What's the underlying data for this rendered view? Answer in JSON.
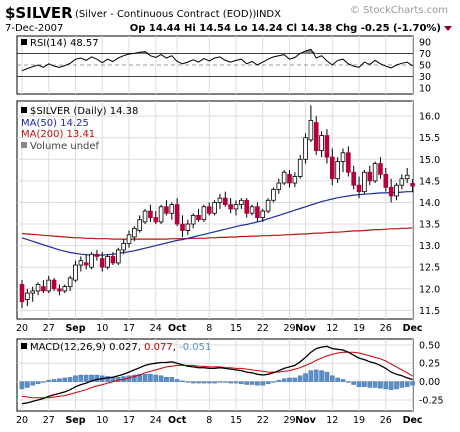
{
  "header": {
    "symbol": "$SILVER",
    "description": "(Silver - Continuous Contract (EOD))",
    "exchange": "INDX",
    "watermark": "© StockCharts.com",
    "date": "7-Dec-2007",
    "quote": "Op 14.44 Hi 14.54 Lo 14.24 Cl 14.38 Chg -0.25 (-1.70%)",
    "chg_arrow": "down-triangle-icon"
  },
  "rsi": {
    "label": "RSI(14) 48.57",
    "ticks": [
      "90",
      "70",
      "50",
      "30",
      "10"
    ],
    "levels": [
      90,
      70,
      50,
      30,
      10
    ],
    "overbought": 70,
    "oversold": 30,
    "range": [
      0,
      100
    ]
  },
  "price": {
    "legend": {
      "title": "$SILVER (Daily) 14.38",
      "ma50": "MA(50) 14.25",
      "ma200": "MA(200) 13.41",
      "volume": "Volume undef"
    },
    "ticks": [
      "16.0",
      "15.5",
      "15.0",
      "14.5",
      "14.0",
      "13.5",
      "13.0",
      "12.5",
      "12.0",
      "11.5"
    ],
    "tick_values": [
      16.0,
      15.5,
      15.0,
      14.5,
      14.0,
      13.5,
      13.0,
      12.5,
      12.0,
      11.5
    ],
    "range": [
      11.3,
      16.35
    ]
  },
  "macd": {
    "label": "MACD(12,26,9) 0.027, ",
    "signal_val": "0.077",
    "sep": ", ",
    "hist_val": "-0.051",
    "ticks": [
      "0.50",
      "0.25",
      "0.00",
      "-0.25"
    ],
    "tick_values": [
      0.5,
      0.25,
      0.0,
      -0.25
    ],
    "range": [
      -0.4,
      0.58
    ]
  },
  "x_axis": {
    "labels": [
      "20",
      "27",
      "Sep",
      "10",
      "17",
      "24",
      "Oct",
      "8",
      "15",
      "22",
      "29",
      "Nov",
      "12",
      "19",
      "26",
      "Dec"
    ],
    "label_bars": [
      0,
      5,
      10,
      15,
      20,
      25,
      29,
      35,
      40,
      45,
      50,
      53,
      58,
      63,
      68,
      73
    ],
    "bold": [
      "Sep",
      "Oct",
      "Nov",
      "Dec"
    ]
  },
  "colors": {
    "up": "#ffffff",
    "down": "#b3003a",
    "ma50": "#1f2d9e",
    "ma200": "#c01010",
    "macd_line": "#000000",
    "signal_line": "#cc0000",
    "histogram": "#5b8ec9",
    "rsi_line": "#000000",
    "grid": "#dcdcdc"
  },
  "chart_data": {
    "type": "candlestick",
    "ohlc": [
      {
        "o": 12.1,
        "h": 12.2,
        "l": 11.55,
        "c": 11.7
      },
      {
        "o": 11.75,
        "h": 12.0,
        "l": 11.6,
        "c": 11.9
      },
      {
        "o": 11.9,
        "h": 12.05,
        "l": 11.7,
        "c": 11.95
      },
      {
        "o": 11.95,
        "h": 12.15,
        "l": 11.85,
        "c": 12.1
      },
      {
        "o": 12.05,
        "h": 12.2,
        "l": 11.9,
        "c": 11.95
      },
      {
        "o": 11.95,
        "h": 12.3,
        "l": 11.9,
        "c": 12.2
      },
      {
        "o": 12.2,
        "h": 12.25,
        "l": 11.95,
        "c": 12.0
      },
      {
        "o": 12.0,
        "h": 12.1,
        "l": 11.85,
        "c": 11.95
      },
      {
        "o": 11.95,
        "h": 12.1,
        "l": 11.9,
        "c": 12.05
      },
      {
        "o": 12.05,
        "h": 12.3,
        "l": 11.95,
        "c": 12.25
      },
      {
        "o": 12.2,
        "h": 12.65,
        "l": 12.15,
        "c": 12.55
      },
      {
        "o": 12.55,
        "h": 12.75,
        "l": 12.4,
        "c": 12.65
      },
      {
        "o": 12.6,
        "h": 12.8,
        "l": 12.45,
        "c": 12.55
      },
      {
        "o": 12.5,
        "h": 12.85,
        "l": 12.45,
        "c": 12.8
      },
      {
        "o": 12.8,
        "h": 12.9,
        "l": 12.65,
        "c": 12.75
      },
      {
        "o": 12.7,
        "h": 12.85,
        "l": 12.4,
        "c": 12.5
      },
      {
        "o": 12.5,
        "h": 12.8,
        "l": 12.45,
        "c": 12.75
      },
      {
        "o": 12.75,
        "h": 12.85,
        "l": 12.55,
        "c": 12.6
      },
      {
        "o": 12.6,
        "h": 12.95,
        "l": 12.55,
        "c": 12.9
      },
      {
        "o": 12.9,
        "h": 13.15,
        "l": 12.8,
        "c": 13.05
      },
      {
        "o": 13.05,
        "h": 13.35,
        "l": 12.95,
        "c": 13.25
      },
      {
        "o": 13.2,
        "h": 13.45,
        "l": 13.1,
        "c": 13.4
      },
      {
        "o": 13.35,
        "h": 13.7,
        "l": 13.3,
        "c": 13.6
      },
      {
        "o": 13.55,
        "h": 13.85,
        "l": 13.5,
        "c": 13.8
      },
      {
        "o": 13.8,
        "h": 13.95,
        "l": 13.55,
        "c": 13.65
      },
      {
        "o": 13.65,
        "h": 13.8,
        "l": 13.5,
        "c": 13.55
      },
      {
        "o": 13.55,
        "h": 13.95,
        "l": 13.5,
        "c": 13.9
      },
      {
        "o": 13.9,
        "h": 14.05,
        "l": 13.7,
        "c": 13.75
      },
      {
        "o": 13.75,
        "h": 14.0,
        "l": 13.6,
        "c": 13.95
      },
      {
        "o": 13.95,
        "h": 14.1,
        "l": 13.45,
        "c": 13.5
      },
      {
        "o": 13.5,
        "h": 13.7,
        "l": 13.2,
        "c": 13.35
      },
      {
        "o": 13.35,
        "h": 13.6,
        "l": 13.25,
        "c": 13.5
      },
      {
        "o": 13.5,
        "h": 13.75,
        "l": 13.4,
        "c": 13.7
      },
      {
        "o": 13.7,
        "h": 13.85,
        "l": 13.55,
        "c": 13.6
      },
      {
        "o": 13.6,
        "h": 13.95,
        "l": 13.55,
        "c": 13.9
      },
      {
        "o": 13.9,
        "h": 14.0,
        "l": 13.7,
        "c": 13.75
      },
      {
        "o": 13.75,
        "h": 14.05,
        "l": 13.7,
        "c": 14.0
      },
      {
        "o": 14.0,
        "h": 14.2,
        "l": 13.85,
        "c": 14.1
      },
      {
        "o": 14.1,
        "h": 14.25,
        "l": 13.9,
        "c": 13.95
      },
      {
        "o": 13.95,
        "h": 14.1,
        "l": 13.75,
        "c": 13.85
      },
      {
        "o": 13.85,
        "h": 14.05,
        "l": 13.7,
        "c": 13.95
      },
      {
        "o": 13.95,
        "h": 14.1,
        "l": 13.85,
        "c": 14.05
      },
      {
        "o": 14.05,
        "h": 14.1,
        "l": 13.65,
        "c": 13.75
      },
      {
        "o": 13.75,
        "h": 13.95,
        "l": 13.7,
        "c": 13.9
      },
      {
        "o": 13.9,
        "h": 14.0,
        "l": 13.55,
        "c": 13.65
      },
      {
        "o": 13.65,
        "h": 13.85,
        "l": 13.55,
        "c": 13.8
      },
      {
        "o": 13.8,
        "h": 14.1,
        "l": 13.75,
        "c": 14.05
      },
      {
        "o": 14.05,
        "h": 14.35,
        "l": 14.0,
        "c": 14.3
      },
      {
        "o": 14.3,
        "h": 14.55,
        "l": 14.2,
        "c": 14.45
      },
      {
        "o": 14.45,
        "h": 14.75,
        "l": 14.4,
        "c": 14.7
      },
      {
        "o": 14.65,
        "h": 14.75,
        "l": 14.35,
        "c": 14.45
      },
      {
        "o": 14.45,
        "h": 14.7,
        "l": 14.35,
        "c": 14.6
      },
      {
        "o": 14.6,
        "h": 15.1,
        "l": 14.55,
        "c": 15.0
      },
      {
        "o": 15.0,
        "h": 15.6,
        "l": 14.9,
        "c": 15.5
      },
      {
        "o": 15.45,
        "h": 16.25,
        "l": 15.4,
        "c": 15.9
      },
      {
        "o": 15.85,
        "h": 16.0,
        "l": 15.1,
        "c": 15.2
      },
      {
        "o": 15.2,
        "h": 15.65,
        "l": 15.05,
        "c": 15.55
      },
      {
        "o": 15.55,
        "h": 15.7,
        "l": 14.9,
        "c": 15.05
      },
      {
        "o": 15.05,
        "h": 15.25,
        "l": 14.4,
        "c": 14.55
      },
      {
        "o": 14.55,
        "h": 15.05,
        "l": 14.45,
        "c": 14.95
      },
      {
        "o": 14.95,
        "h": 15.25,
        "l": 14.7,
        "c": 15.15
      },
      {
        "o": 15.15,
        "h": 15.3,
        "l": 14.6,
        "c": 14.7
      },
      {
        "o": 14.7,
        "h": 14.85,
        "l": 14.3,
        "c": 14.4
      },
      {
        "o": 14.4,
        "h": 14.6,
        "l": 14.1,
        "c": 14.25
      },
      {
        "o": 14.25,
        "h": 14.75,
        "l": 14.2,
        "c": 14.7
      },
      {
        "o": 14.7,
        "h": 14.85,
        "l": 14.4,
        "c": 14.5
      },
      {
        "o": 14.5,
        "h": 14.95,
        "l": 14.45,
        "c": 14.9
      },
      {
        "o": 14.9,
        "h": 15.05,
        "l": 14.55,
        "c": 14.65
      },
      {
        "o": 14.65,
        "h": 14.8,
        "l": 14.25,
        "c": 14.35
      },
      {
        "o": 14.35,
        "h": 14.55,
        "l": 14.0,
        "c": 14.15
      },
      {
        "o": 14.15,
        "h": 14.45,
        "l": 14.05,
        "c": 14.4
      },
      {
        "o": 14.4,
        "h": 14.65,
        "l": 14.3,
        "c": 14.55
      },
      {
        "o": 14.55,
        "h": 14.8,
        "l": 14.45,
        "c": 14.63
      },
      {
        "o": 14.44,
        "h": 14.54,
        "l": 14.24,
        "c": 14.38
      }
    ],
    "ma50": [
      13.18,
      13.14,
      13.1,
      13.06,
      13.02,
      12.98,
      12.94,
      12.9,
      12.87,
      12.84,
      12.82,
      12.8,
      12.79,
      12.78,
      12.78,
      12.78,
      12.79,
      12.8,
      12.82,
      12.84,
      12.86,
      12.88,
      12.91,
      12.94,
      12.97,
      13.0,
      13.03,
      13.06,
      13.09,
      13.12,
      13.14,
      13.17,
      13.2,
      13.23,
      13.26,
      13.29,
      13.32,
      13.35,
      13.38,
      13.41,
      13.44,
      13.47,
      13.49,
      13.52,
      13.55,
      13.58,
      13.62,
      13.66,
      13.7,
      13.74,
      13.78,
      13.82,
      13.86,
      13.9,
      13.94,
      13.98,
      14.02,
      14.05,
      14.08,
      14.11,
      14.13,
      14.15,
      14.17,
      14.18,
      14.19,
      14.2,
      14.21,
      14.22,
      14.22,
      14.23,
      14.23,
      14.24,
      14.25,
      14.25
    ],
    "ma200": [
      13.28,
      13.27,
      13.26,
      13.25,
      13.24,
      13.23,
      13.22,
      13.21,
      13.2,
      13.19,
      13.18,
      13.18,
      13.17,
      13.17,
      13.16,
      13.16,
      13.16,
      13.15,
      13.15,
      13.15,
      13.15,
      13.15,
      13.15,
      13.15,
      13.15,
      13.15,
      13.15,
      13.15,
      13.16,
      13.16,
      13.16,
      13.16,
      13.17,
      13.17,
      13.17,
      13.18,
      13.18,
      13.19,
      13.19,
      13.2,
      13.2,
      13.21,
      13.21,
      13.22,
      13.22,
      13.23,
      13.23,
      13.24,
      13.24,
      13.25,
      13.25,
      13.26,
      13.27,
      13.27,
      13.28,
      13.29,
      13.29,
      13.3,
      13.31,
      13.31,
      13.32,
      13.33,
      13.34,
      13.34,
      13.35,
      13.36,
      13.37,
      13.37,
      13.38,
      13.39,
      13.39,
      13.4,
      13.4,
      13.41
    ],
    "rsi": [
      40,
      44,
      47,
      50,
      46,
      52,
      48,
      46,
      49,
      53,
      60,
      62,
      58,
      64,
      60,
      54,
      60,
      56,
      62,
      66,
      69,
      70,
      72,
      73,
      66,
      63,
      68,
      62,
      66,
      56,
      52,
      55,
      59,
      55,
      61,
      57,
      62,
      64,
      58,
      55,
      58,
      60,
      52,
      56,
      50,
      55,
      60,
      64,
      66,
      68,
      60,
      63,
      70,
      74,
      77,
      62,
      66,
      57,
      50,
      58,
      60,
      52,
      48,
      46,
      55,
      51,
      58,
      52,
      48,
      45,
      50,
      53,
      55,
      48.57
    ],
    "macd": [
      -0.3,
      -0.29,
      -0.27,
      -0.25,
      -0.23,
      -0.2,
      -0.18,
      -0.16,
      -0.14,
      -0.11,
      -0.07,
      -0.04,
      -0.02,
      0.01,
      0.03,
      0.04,
      0.05,
      0.06,
      0.08,
      0.1,
      0.13,
      0.16,
      0.19,
      0.22,
      0.24,
      0.25,
      0.26,
      0.26,
      0.27,
      0.25,
      0.23,
      0.21,
      0.2,
      0.19,
      0.19,
      0.18,
      0.18,
      0.19,
      0.18,
      0.17,
      0.16,
      0.15,
      0.13,
      0.12,
      0.1,
      0.09,
      0.1,
      0.12,
      0.15,
      0.18,
      0.2,
      0.22,
      0.27,
      0.33,
      0.4,
      0.45,
      0.47,
      0.48,
      0.45,
      0.44,
      0.43,
      0.4,
      0.36,
      0.32,
      0.3,
      0.27,
      0.25,
      0.22,
      0.18,
      0.13,
      0.1,
      0.08,
      0.05,
      0.027
    ],
    "signal": [
      -0.2,
      -0.21,
      -0.22,
      -0.22,
      -0.22,
      -0.22,
      -0.21,
      -0.2,
      -0.19,
      -0.17,
      -0.15,
      -0.13,
      -0.11,
      -0.08,
      -0.06,
      -0.04,
      -0.02,
      0.0,
      0.02,
      0.03,
      0.05,
      0.07,
      0.09,
      0.12,
      0.14,
      0.16,
      0.18,
      0.2,
      0.21,
      0.22,
      0.22,
      0.22,
      0.22,
      0.21,
      0.21,
      0.2,
      0.2,
      0.2,
      0.19,
      0.19,
      0.18,
      0.18,
      0.17,
      0.16,
      0.15,
      0.14,
      0.13,
      0.13,
      0.13,
      0.14,
      0.15,
      0.17,
      0.19,
      0.22,
      0.25,
      0.29,
      0.32,
      0.35,
      0.37,
      0.39,
      0.4,
      0.4,
      0.4,
      0.39,
      0.37,
      0.35,
      0.33,
      0.31,
      0.28,
      0.24,
      0.2,
      0.16,
      0.12,
      0.077
    ]
  }
}
